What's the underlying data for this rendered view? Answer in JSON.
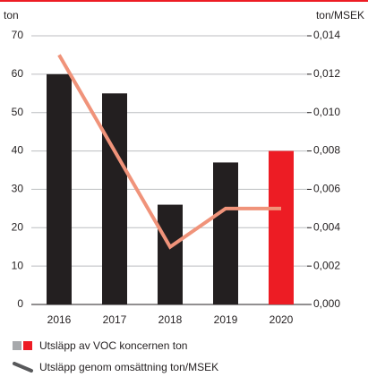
{
  "chart_data": {
    "type": "bar_line",
    "y_label": "ton",
    "y2_label": "ton/MSEK",
    "categories": [
      "2016",
      "2017",
      "2018",
      "2019",
      "2020"
    ],
    "series": [
      {
        "name": "Utsläpp av VOC koncernen ton",
        "type": "bar",
        "colors": [
          "#231f20",
          "#231f20",
          "#231f20",
          "#231f20",
          "#ed1c24"
        ],
        "values": [
          60,
          55,
          26,
          37,
          40
        ]
      },
      {
        "name": "Utsläpp genom omsättning ton/MSEK",
        "type": "line",
        "axis": "y2",
        "color": "#f0937a",
        "values": [
          0.013,
          0.008,
          0.003,
          0.005,
          0.005
        ]
      }
    ],
    "ylim": [
      0,
      70
    ],
    "yticks": [
      0,
      10,
      20,
      30,
      40,
      50,
      60,
      70
    ],
    "y2lim": [
      0,
      0.014
    ],
    "y2ticks": [
      {
        "value": 0,
        "label": "0,000"
      },
      {
        "value": 0.002,
        "label": "0,002"
      },
      {
        "value": 0.004,
        "label": "0,004"
      },
      {
        "value": 0.006,
        "label": "0,006"
      },
      {
        "value": 0.008,
        "label": "0,008"
      },
      {
        "value": 0.01,
        "label": "0,010"
      },
      {
        "value": 0.012,
        "label": "0,012"
      },
      {
        "value": 0.014,
        "label": "0,014"
      }
    ],
    "grid": true
  }
}
